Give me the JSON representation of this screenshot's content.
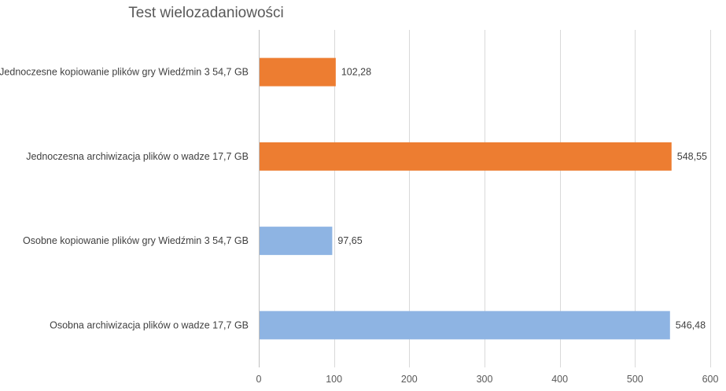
{
  "chart_data": {
    "type": "bar",
    "orientation": "horizontal",
    "title": "Test wielozadaniowości",
    "xlabel": "",
    "ylabel": "",
    "xlim": [
      0,
      600
    ],
    "x_ticks": [
      0,
      100,
      200,
      300,
      400,
      500,
      600
    ],
    "grid": true,
    "legend": "none",
    "categories": [
      "Jednoczesne kopiowanie plików gry Wiedźmin 3 54,7 GB",
      "Jednoczesna archiwizacja plików o wadze 17,7 GB",
      "Osobne kopiowanie plików gry Wiedźmin 3 54,7 GB",
      "Osobna archiwizacja plików o wadze 17,7 GB"
    ],
    "values": [
      102.28,
      548.55,
      97.65,
      546.48
    ],
    "value_labels": [
      "102,28",
      "548,55",
      "97,65",
      "546,48"
    ],
    "bar_colors": [
      "#ed7d31",
      "#ed7d31",
      "#8eb4e3",
      "#8eb4e3"
    ]
  },
  "colors": {
    "orange": "#ed7d31",
    "blue": "#8eb4e3",
    "grid": "#d9d9d9",
    "axis": "#bfbfbf"
  }
}
